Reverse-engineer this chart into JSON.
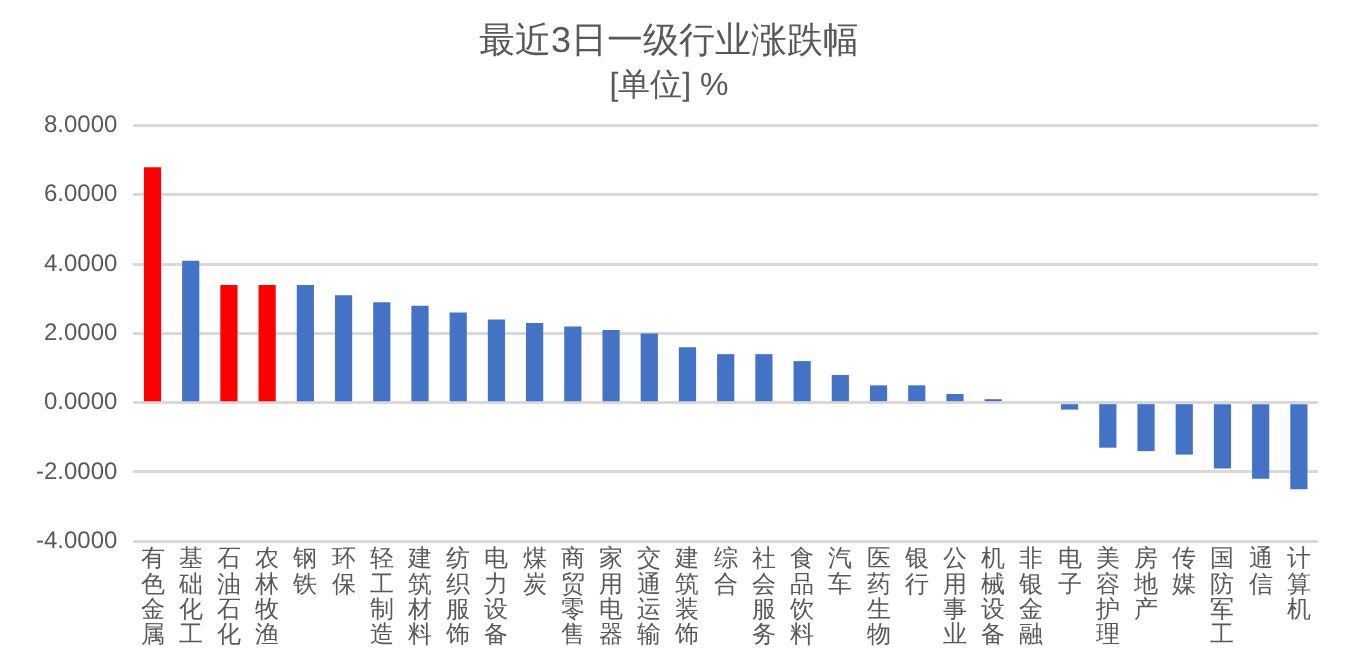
{
  "chart_data": {
    "type": "bar",
    "title": "最近3日一级行业涨跌幅",
    "subtitle": "[单位] %",
    "categories": [
      "有色金属",
      "基础化工",
      "石油石化",
      "农林牧渔",
      "钢铁",
      "环保",
      "轻工制造",
      "建筑材料",
      "纺织服饰",
      "电力设备",
      "煤炭",
      "商贸零售",
      "家用电器",
      "交通运输",
      "建筑装饰",
      "综合",
      "社会服务",
      "食品饮料",
      "汽车",
      "医药生物",
      "银行",
      "公用事业",
      "机械设备",
      "非银金融",
      "电子",
      "美容护理",
      "房地产",
      "传媒",
      "国防军工",
      "通信",
      "计算机"
    ],
    "values": [
      6.8,
      4.1,
      3.4,
      3.4,
      3.4,
      3.1,
      2.9,
      2.8,
      2.6,
      2.4,
      2.3,
      2.2,
      2.1,
      2.0,
      1.6,
      1.4,
      1.4,
      1.2,
      0.8,
      0.5,
      0.5,
      0.25,
      0.1,
      0,
      -0.2,
      -1.3,
      -1.4,
      -1.5,
      -1.9,
      -2.2,
      -2.5
    ],
    "colors": [
      "#ff0000",
      "#4472c4",
      "#ff0000",
      "#ff0000",
      "#4472c4",
      "#4472c4",
      "#4472c4",
      "#4472c4",
      "#4472c4",
      "#4472c4",
      "#4472c4",
      "#4472c4",
      "#4472c4",
      "#4472c4",
      "#4472c4",
      "#4472c4",
      "#4472c4",
      "#4472c4",
      "#4472c4",
      "#4472c4",
      "#4472c4",
      "#4472c4",
      "#4472c4",
      "#4472c4",
      "#4472c4",
      "#4472c4",
      "#4472c4",
      "#4472c4",
      "#4472c4",
      "#4472c4",
      "#4472c4"
    ],
    "ylim": [
      -4,
      8
    ],
    "yticks": [
      {
        "value": -4,
        "label": "-4.0000"
      },
      {
        "value": -2,
        "label": "-2.0000"
      },
      {
        "value": 0,
        "label": "0.0000"
      },
      {
        "value": 2,
        "label": "2.0000"
      },
      {
        "value": 4,
        "label": "4.0000"
      },
      {
        "value": 6,
        "label": "6.0000"
      },
      {
        "value": 8,
        "label": "8.0000"
      }
    ],
    "grid": "y",
    "legend": false
  }
}
